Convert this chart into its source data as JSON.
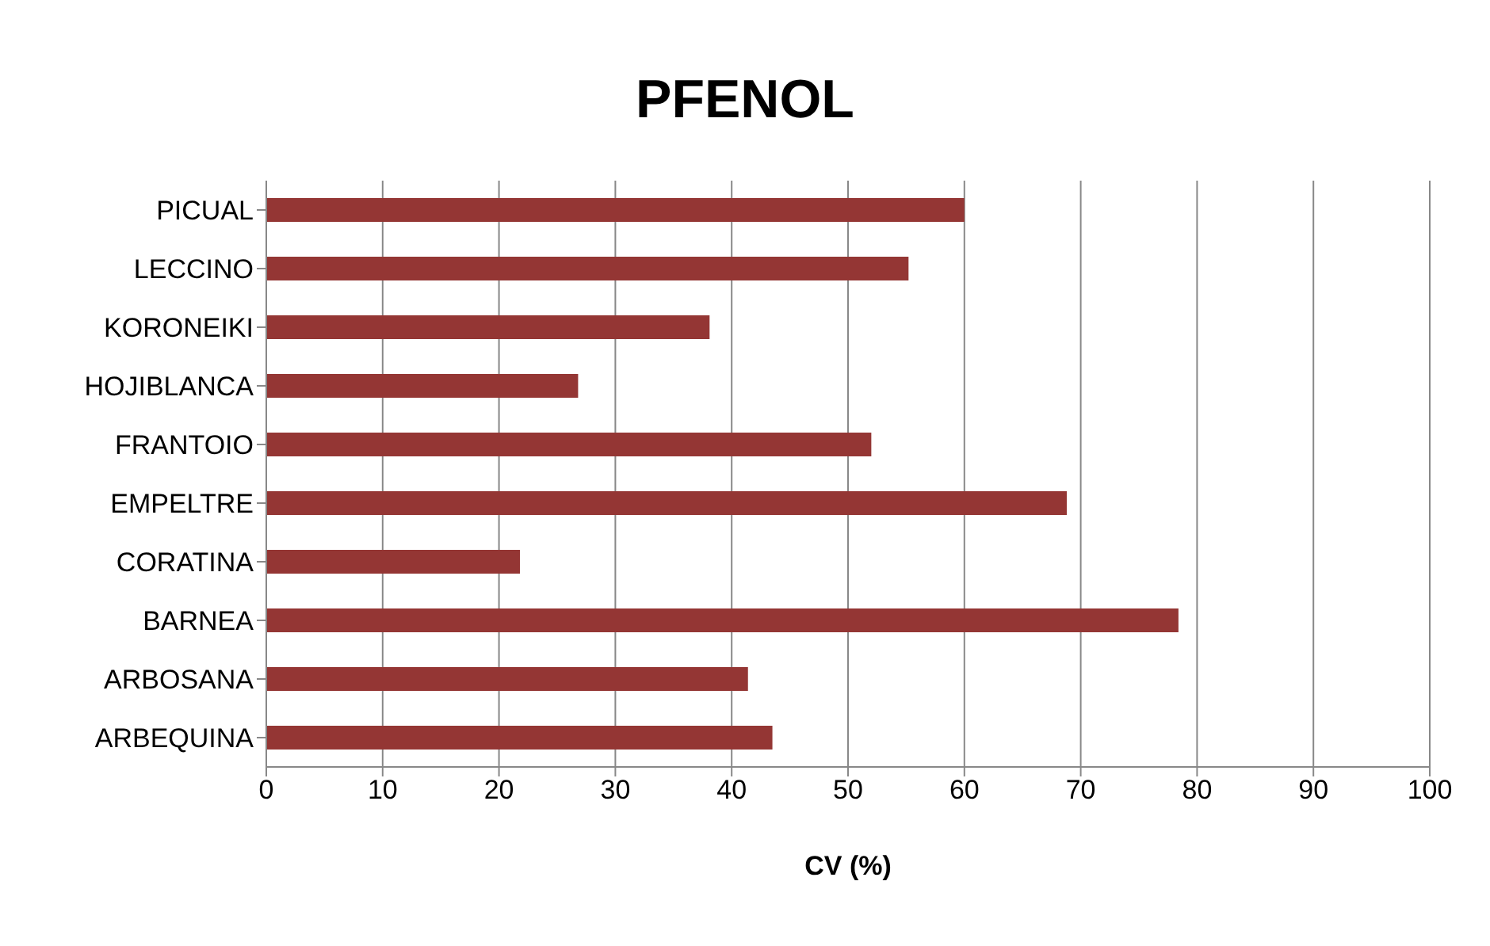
{
  "chart_data": {
    "type": "bar",
    "orientation": "horizontal",
    "title": "PFENOL",
    "xlabel": "CV (%)",
    "categories": [
      "PICUAL",
      "LECCINO",
      "KORONEIKI",
      "HOJIBLANCA",
      "FRANTOIO",
      "EMPELTRE",
      "CORATINA",
      "BARNEA",
      "ARBOSANA",
      "ARBEQUINA"
    ],
    "values": [
      60,
      55.2,
      38.1,
      26.8,
      52,
      68.8,
      21.8,
      78.4,
      41.4,
      43.5
    ],
    "color": "#943634",
    "xlim": [
      0,
      100
    ],
    "xticks": [
      0,
      10,
      20,
      30,
      40,
      50,
      60,
      70,
      80,
      90,
      100
    ],
    "grid": "x"
  }
}
